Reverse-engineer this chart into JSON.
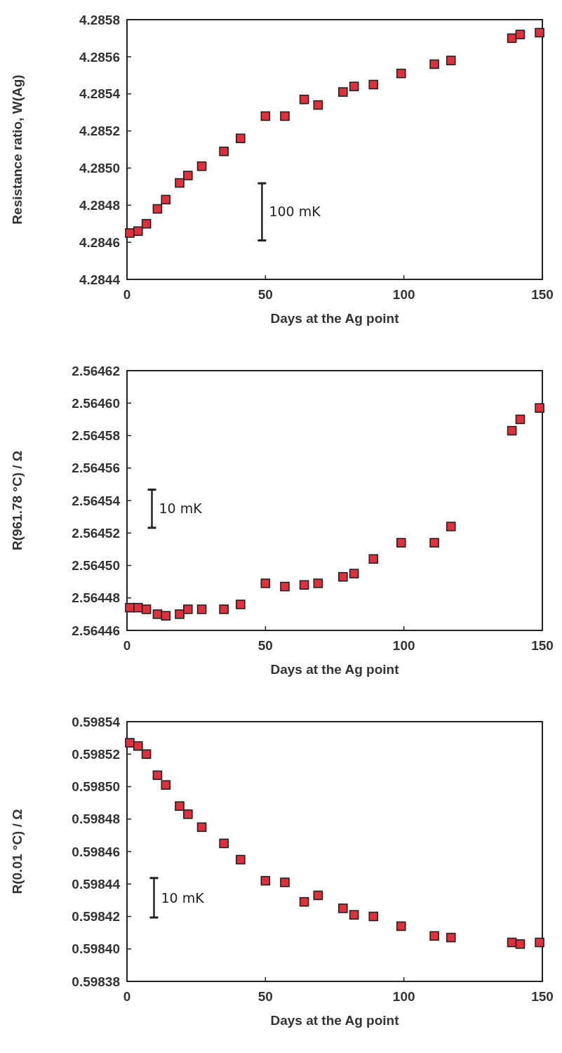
{
  "chart_data": [
    {
      "type": "scatter",
      "xlabel": "Days at the Ag point",
      "ylabel": "Resistance ratio, W(Ag)",
      "x": [
        1,
        4,
        7,
        11,
        14,
        19,
        22,
        27,
        35,
        41,
        50,
        57,
        64,
        69,
        78,
        82,
        89,
        99,
        111,
        117,
        139,
        142,
        149
      ],
      "series": [
        {
          "color": "#e0303c",
          "values": [
            4.28465,
            4.28466,
            4.2847,
            4.28478,
            4.28483,
            4.28492,
            4.28496,
            4.28501,
            4.28509,
            4.28516,
            4.28528,
            4.28528,
            4.28537,
            4.28534,
            4.28541,
            4.28544,
            4.28545,
            4.28551,
            4.28556,
            4.28558,
            4.2857,
            4.28572,
            4.28573
          ]
        }
      ],
      "marker": "square",
      "xlim": [
        0,
        150
      ],
      "xticks": [
        0,
        50,
        100,
        150
      ],
      "ylim": [
        4.2844,
        4.2858
      ],
      "yticks": [
        {
          "value": 4.2844,
          "label": "4.2844"
        },
        {
          "value": 4.2846,
          "label": "4.2846"
        },
        {
          "value": 4.2848,
          "label": "4.2848"
        },
        {
          "value": 4.285,
          "label": "4.2850"
        },
        {
          "value": 4.2852,
          "label": "4.2852"
        },
        {
          "value": 4.2854,
          "label": "4.2854"
        },
        {
          "value": 4.2856,
          "label": "4.2856"
        },
        {
          "value": 4.2858,
          "label": "4.2858"
        }
      ],
      "annotations": [
        "100 mK"
      ]
    },
    {
      "type": "scatter",
      "xlabel": "Days at the Ag point",
      "ylabel": "R(961.78 °C) / Ω",
      "x": [
        1,
        4,
        7,
        11,
        14,
        19,
        22,
        27,
        35,
        41,
        50,
        57,
        64,
        69,
        78,
        82,
        89,
        99,
        111,
        117,
        139,
        142,
        149
      ],
      "series": [
        {
          "color": "#e0303c",
          "values": [
            2.564474,
            2.564474,
            2.564473,
            2.56447,
            2.564469,
            2.56447,
            2.564473,
            2.564473,
            2.564473,
            2.564476,
            2.564489,
            2.564487,
            2.564488,
            2.564489,
            2.564493,
            2.564495,
            2.564504,
            2.564514,
            2.564514,
            2.564524,
            2.564583,
            2.56459,
            2.564597
          ]
        }
      ],
      "marker": "square",
      "xlim": [
        0,
        150
      ],
      "xticks": [
        0,
        50,
        100,
        150
      ],
      "ylim": [
        2.56446,
        2.56462
      ],
      "yticks": [
        {
          "value": 2.56446,
          "label": "2.56446"
        },
        {
          "value": 2.56448,
          "label": "2.56448"
        },
        {
          "value": 2.5645,
          "label": "2.56450"
        },
        {
          "value": 2.56452,
          "label": "2.56452"
        },
        {
          "value": 2.56454,
          "label": "2.56454"
        },
        {
          "value": 2.56456,
          "label": "2.56456"
        },
        {
          "value": 2.56458,
          "label": "2.56458"
        },
        {
          "value": 2.5646,
          "label": "2.56460"
        },
        {
          "value": 2.56462,
          "label": "2.56462"
        }
      ],
      "annotations": [
        "10 mK"
      ]
    },
    {
      "type": "scatter",
      "xlabel": "Days at the Ag point",
      "ylabel": "R(0.01 °C) / Ω",
      "x": [
        1,
        4,
        7,
        11,
        14,
        19,
        22,
        27,
        35,
        41,
        50,
        57,
        64,
        69,
        78,
        82,
        89,
        99,
        111,
        117,
        139,
        142,
        149
      ],
      "series": [
        {
          "color": "#e0303c",
          "values": [
            0.598527,
            0.598525,
            0.59852,
            0.598507,
            0.598501,
            0.598488,
            0.598483,
            0.598475,
            0.598465,
            0.598455,
            0.598442,
            0.598441,
            0.598429,
            0.598433,
            0.598425,
            0.598421,
            0.59842,
            0.598414,
            0.598408,
            0.598407,
            0.598404,
            0.598403,
            0.598404
          ]
        }
      ],
      "marker": "square",
      "xlim": [
        0,
        150
      ],
      "xticks": [
        0,
        50,
        100,
        150
      ],
      "ylim": [
        0.59838,
        0.59854
      ],
      "yticks": [
        {
          "value": 0.59838,
          "label": "0.59838"
        },
        {
          "value": 0.5984,
          "label": "0.59840"
        },
        {
          "value": 0.59842,
          "label": "0.59842"
        },
        {
          "value": 0.59844,
          "label": "0.59844"
        },
        {
          "value": 0.59846,
          "label": "0.59846"
        },
        {
          "value": 0.59848,
          "label": "0.59848"
        },
        {
          "value": 0.5985,
          "label": "0.59850"
        },
        {
          "value": 0.59852,
          "label": "0.59852"
        },
        {
          "value": 0.59854,
          "label": "0.59854"
        }
      ],
      "annotations": [
        "10 mK"
      ]
    }
  ]
}
